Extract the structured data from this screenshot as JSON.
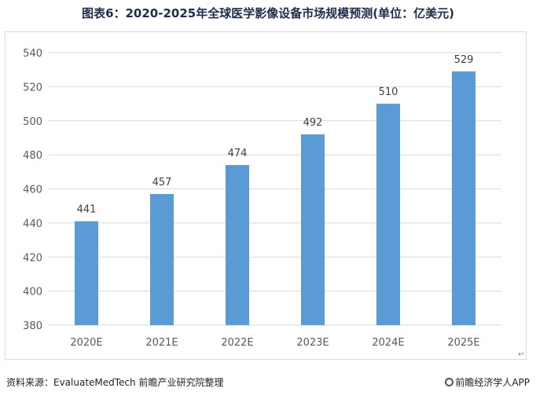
{
  "title": "图表6：2020-2025年全球医学影像设备市场规模预测(单位：亿美元)",
  "footer": {
    "source": "资料来源：EvaluateMedTech 前瞻产业研究院整理",
    "brand": "前瞻经济学人APP"
  },
  "colors": {
    "bar": "#5b9bd5",
    "grid": "#d9d9d9",
    "axis_text": "#595959",
    "label_text": "#404040"
  },
  "chart_data": {
    "type": "bar",
    "title": "图表6：2020-2025年全球医学影像设备市场规模预测(单位：亿美元)",
    "categories": [
      "2020E",
      "2021E",
      "2022E",
      "2023E",
      "2024E",
      "2025E"
    ],
    "values": [
      441,
      457,
      474,
      492,
      510,
      529
    ],
    "ylim": [
      380,
      540
    ],
    "yticks": [
      380,
      400,
      420,
      440,
      460,
      480,
      500,
      520,
      540
    ],
    "grid": true,
    "data_labels": true
  }
}
